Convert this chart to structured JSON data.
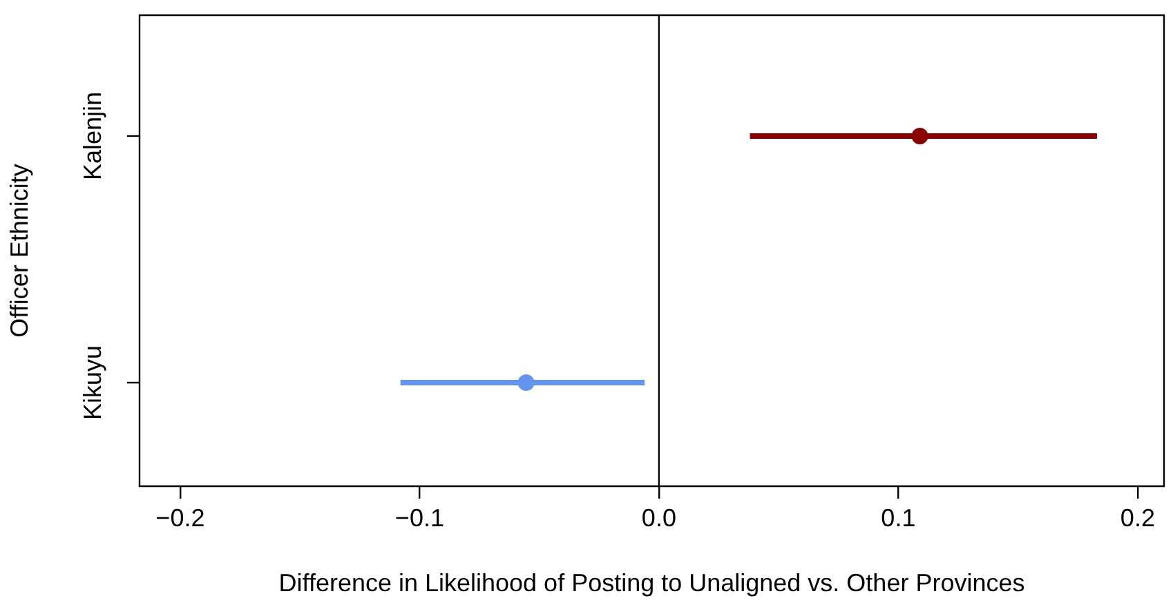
{
  "chart_data": {
    "type": "scatter",
    "orientation": "horizontal",
    "xlabel": "Difference in Likelihood of Posting to Unaligned vs. Other Provinces",
    "ylabel": "Officer Ethnicity",
    "categories": [
      "Kalenjin",
      "Kikuyu"
    ],
    "values": [
      0.109,
      -0.0555
    ],
    "colors": [
      "#8b0000",
      "#6495ed"
    ],
    "errors": [
      [
        0.038,
        0.183
      ],
      [
        -0.108,
        -0.006
      ]
    ],
    "xlim": [
      -0.217,
      0.211
    ],
    "xticks": [
      {
        "value": -0.2,
        "label": "−0.2"
      },
      {
        "value": -0.1,
        "label": "−0.1"
      },
      {
        "value": 0,
        "label": "0.0"
      },
      {
        "value": 0.1,
        "label": "0.1"
      },
      {
        "value": 0.2,
        "label": "0.2"
      }
    ],
    "ref_lines": [
      {
        "axis": "x",
        "value": 0,
        "color": "#000000"
      }
    ],
    "grid": false,
    "legend": false,
    "marker": "circle"
  }
}
